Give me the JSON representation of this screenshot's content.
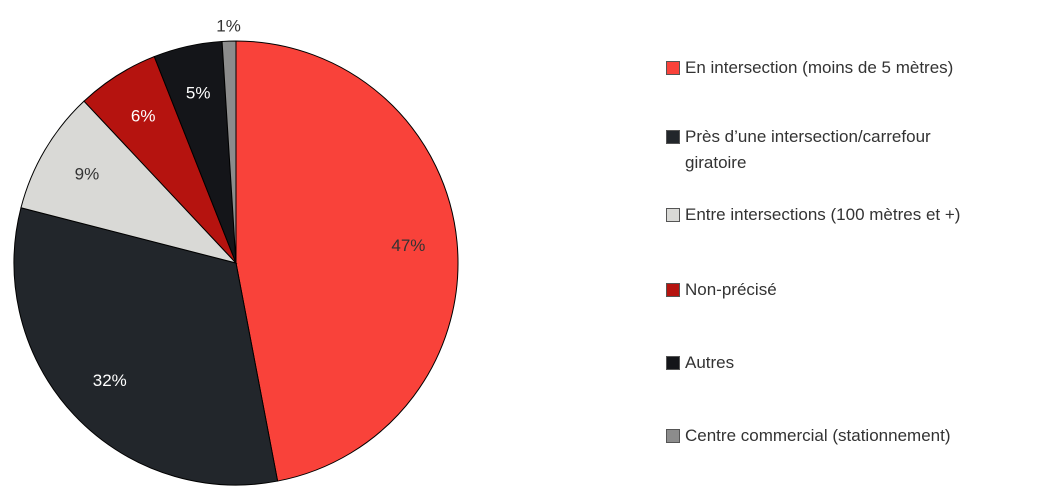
{
  "chart_data": {
    "type": "pie",
    "categories": [
      "En intersection (moins de 5 mètres)",
      "Près d’une intersection/carrefour giratoire",
      "Entre intersections (100 mètres et +)",
      "Non-précisé",
      "Autres",
      "Centre commercial (stationnement)"
    ],
    "values": [
      47,
      32,
      9,
      6,
      5,
      1
    ],
    "value_labels": [
      "47%",
      "32%",
      "9%",
      "6%",
      "5%",
      "1%"
    ],
    "colors": [
      "#f9423a",
      "#22262b",
      "#d9d9d6",
      "#b5130f",
      "#141519",
      "#8c8c8c"
    ],
    "legend": "right"
  }
}
